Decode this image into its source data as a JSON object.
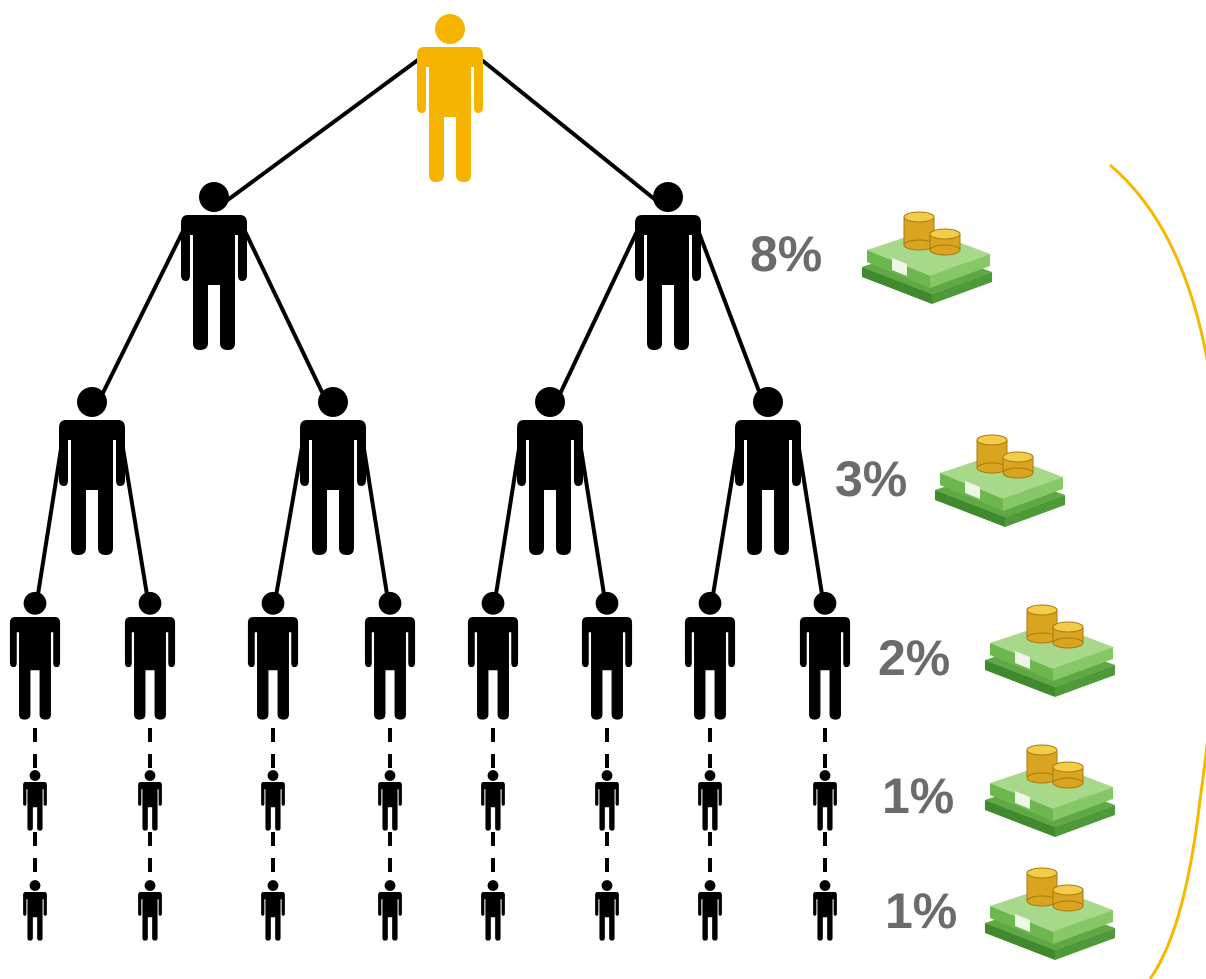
{
  "rewards": [
    "8%",
    "3%",
    "2%",
    "1%",
    "1%"
  ]
}
